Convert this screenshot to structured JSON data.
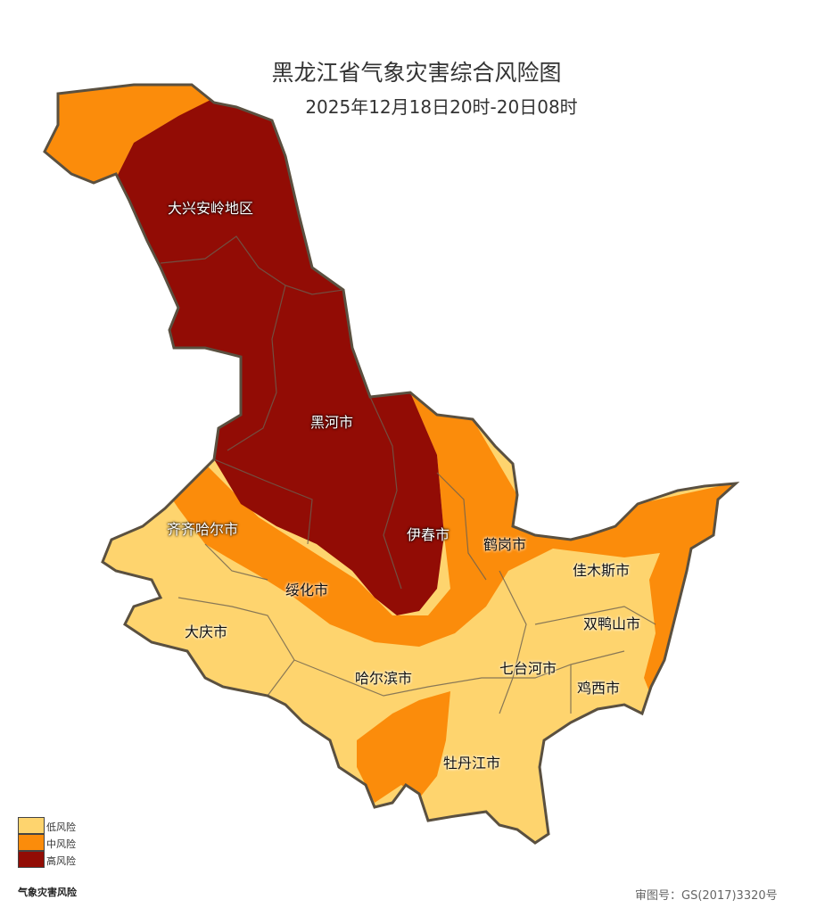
{
  "title": "黑龙江省气象灾害综合风险图",
  "subtitle": "2025年12月18日20时-20日08时",
  "colors": {
    "low": "#FED46E",
    "medium": "#FB8C0B",
    "high": "#920C05",
    "border": "#5a5040"
  },
  "regions": [
    {
      "name": "大兴安岭地区",
      "risk": "high"
    },
    {
      "name": "黑河市",
      "risk": "high"
    },
    {
      "name": "齐齐哈尔市",
      "risk": "low/medium"
    },
    {
      "name": "伊春市",
      "risk": "high/medium"
    },
    {
      "name": "鹤岗市",
      "risk": "medium"
    },
    {
      "name": "佳木斯市",
      "risk": "low"
    },
    {
      "name": "绥化市",
      "risk": "medium"
    },
    {
      "name": "双鸭山市",
      "risk": "low/medium"
    },
    {
      "name": "大庆市",
      "risk": "low"
    },
    {
      "name": "七台河市",
      "risk": "low"
    },
    {
      "name": "哈尔滨市",
      "risk": "low"
    },
    {
      "name": "鸡西市",
      "risk": "low"
    },
    {
      "name": "牡丹江市",
      "risk": "low/medium"
    }
  ],
  "legend": {
    "items": [
      "低风险",
      "中风险",
      "高风险"
    ],
    "title": "气象灾害风险"
  },
  "approval": "审图号：GS(2017)3320号"
}
